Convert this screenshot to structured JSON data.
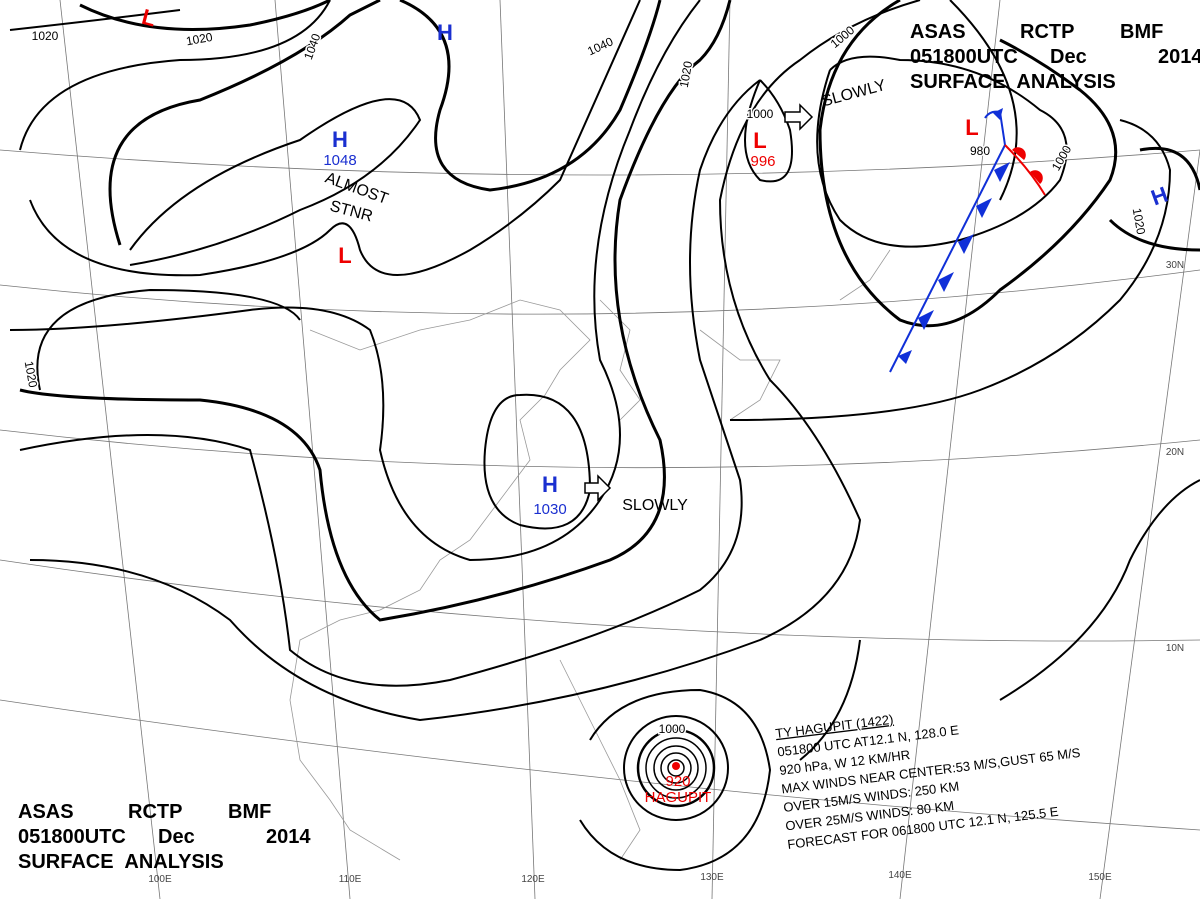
{
  "header_top": {
    "line1": [
      "ASAS",
      "RCTP",
      "BMF"
    ],
    "line2": [
      "051800UTC",
      "Dec",
      "2014"
    ],
    "line3": "SURFACE ANALYSIS"
  },
  "header_bottom": {
    "line1": [
      "ASAS",
      "RCTP",
      "BMF"
    ],
    "line2": [
      "051800UTC",
      "Dec",
      "2014"
    ],
    "line3": "SURFACE ANALYSIS"
  },
  "pressure_centers": [
    {
      "symbol": "H",
      "value": "1048"
    },
    {
      "symbol": "H",
      "value": "1030"
    },
    {
      "symbol": "L",
      "value": "996"
    },
    {
      "symbol": "L",
      "value": "920"
    },
    {
      "symbol": "H"
    },
    {
      "symbol": "H"
    },
    {
      "symbol": "L"
    },
    {
      "symbol": "L"
    },
    {
      "symbol": "L"
    }
  ],
  "typhoon_name": "HAGUPIT",
  "isobar_labels": [
    "1020",
    "1020",
    "1040",
    "1040",
    "1020",
    "1000",
    "1000",
    "980",
    "1000",
    "1020",
    "1020",
    "1000"
  ],
  "annotations": [
    "SLOWLY",
    "SLOWLY",
    "ALMOST",
    "STNR"
  ],
  "typhoon_info": [
    "TY HAGUPIT (1422)",
    "051800 UTC AT12.1 N, 128.0 E",
    "920 hPa, W 12 KM/HR",
    "MAX WINDS NEAR CENTER:53 M/S,GUST 65 M/S",
    "OVER 15M/S WINDS: 250 KM",
    "OVER 25M/S WINDS: 80 KM",
    "FORECAST FOR 061800 UTC 12.1 N, 125.5 E"
  ],
  "latitude_labels": [
    "30N",
    "20N",
    "10N"
  ],
  "longitude_labels": [
    "100E",
    "110E",
    "120E",
    "130E",
    "140E",
    "150E"
  ]
}
